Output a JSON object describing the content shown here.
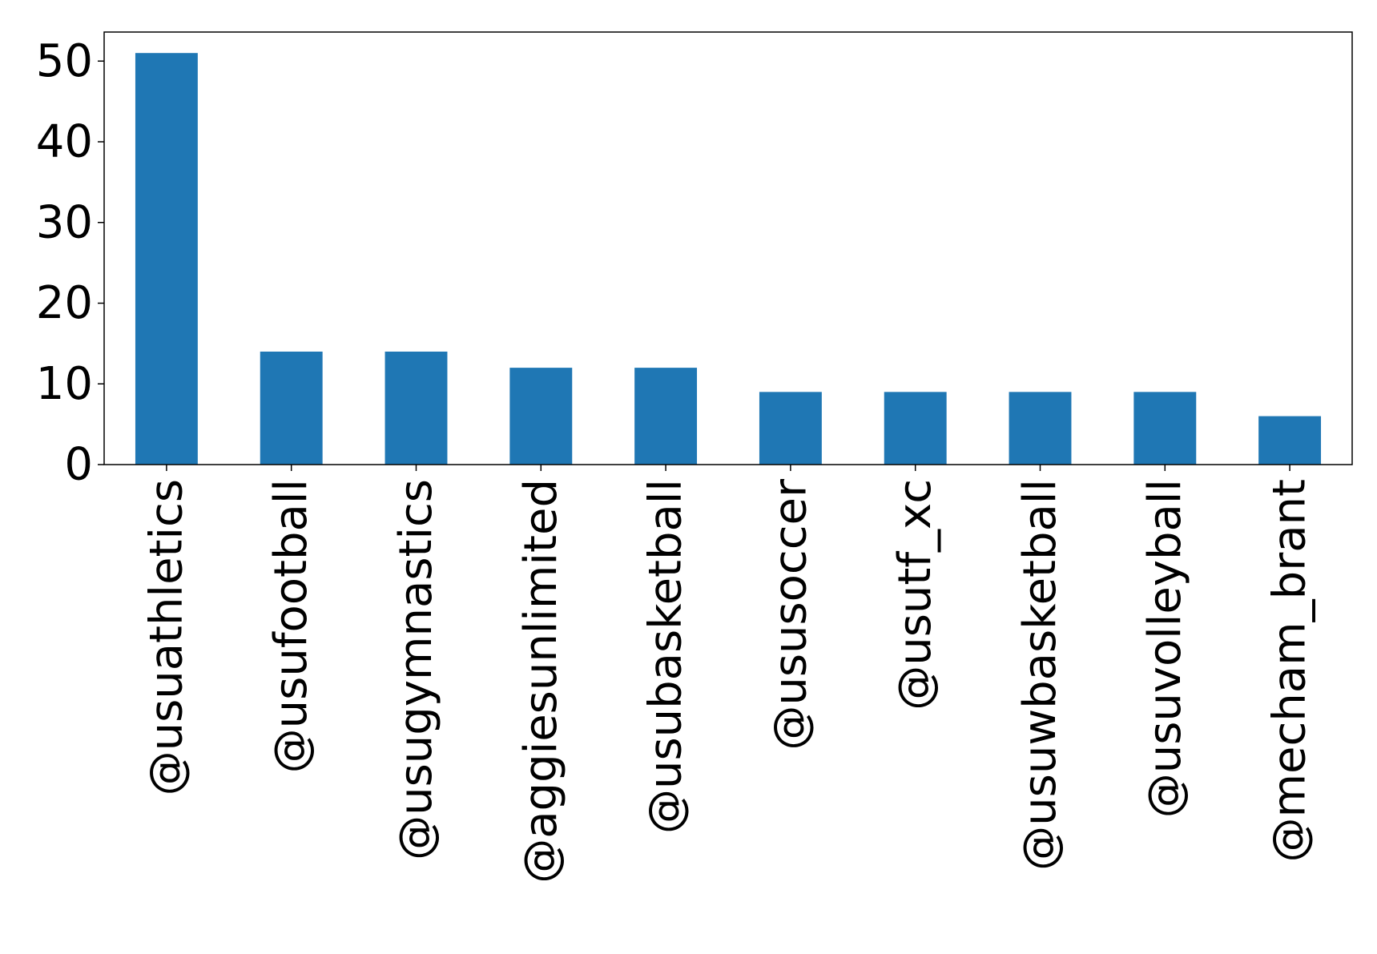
{
  "chart_data": {
    "type": "bar",
    "title": "",
    "xlabel": "",
    "ylabel": "",
    "categories": [
      "@usuathletics",
      "@usufootball",
      "@usugymnastics",
      "@aggiesunlimited",
      "@usubasketball",
      "@ususoccer",
      "@usutf_xc",
      "@usuwbasketball",
      "@usuvolleyball",
      "@mecham_brant"
    ],
    "values": [
      51,
      14,
      14,
      12,
      12,
      9,
      9,
      9,
      9,
      6
    ],
    "ylim": [
      0,
      53.6
    ],
    "yticks": [
      0,
      10,
      20,
      30,
      40,
      50
    ],
    "bar_color": "#1f77b4",
    "grid": false,
    "legend": "none"
  }
}
